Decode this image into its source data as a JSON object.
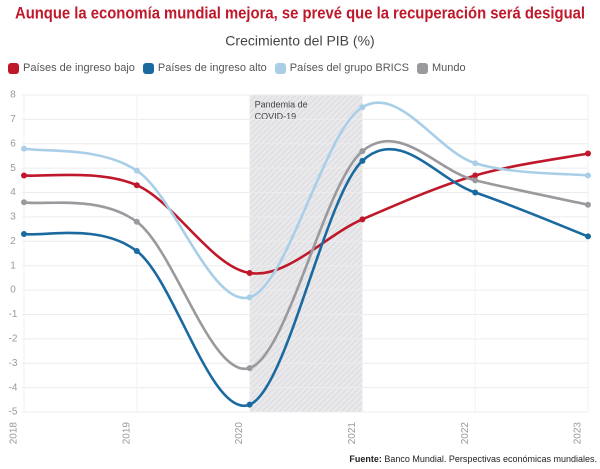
{
  "chart_data": {
    "type": "line",
    "title": "Aunque la economía mundial mejora, se prevé que la recuperación será desigual",
    "subtitle": "Crecimiento del PIB (%)",
    "categories": [
      "2018",
      "2019",
      "2020",
      "2021",
      "2022",
      "2023"
    ],
    "series": [
      {
        "name": "Países de ingreso bajo",
        "color": "#c0182b",
        "values": [
          4.7,
          4.3,
          0.7,
          2.9,
          4.7,
          5.6
        ]
      },
      {
        "name": "Países de ingreso alto",
        "color": "#1a6aa0",
        "values": [
          2.3,
          1.6,
          -4.7,
          5.3,
          4.0,
          2.2
        ]
      },
      {
        "name": "Países del grupo BRICS",
        "color": "#a9cfe8",
        "values": [
          5.8,
          4.9,
          -0.3,
          7.5,
          5.2,
          4.7
        ]
      },
      {
        "name": "Mundo",
        "color": "#9a9a9e",
        "values": [
          3.6,
          2.8,
          -3.2,
          5.7,
          4.5,
          3.5
        ]
      }
    ],
    "ylim": [
      -5,
      8
    ],
    "yticks": [
      -5,
      -4,
      -3,
      -2,
      -1,
      0,
      1,
      2,
      3,
      4,
      5,
      6,
      7,
      8
    ],
    "grid": true,
    "annotation": {
      "lines": [
        "Pandemia de",
        "COVID-19"
      ],
      "from": "2020",
      "to": "2021"
    },
    "source_label": "Fuente:",
    "source": "Banco Mundial. Perspectivas económicas mundiales."
  }
}
